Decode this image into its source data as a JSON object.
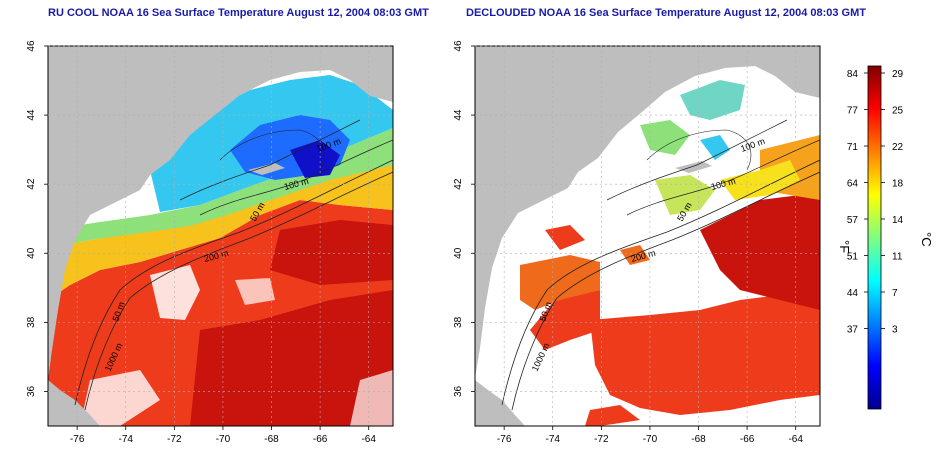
{
  "panels": [
    {
      "title": "RU COOL NOAA 16 Sea Surface Temperature August 12, 2004 08:03 GMT",
      "contour_labels": [
        "100 m",
        "100 m",
        "50 m",
        "200 m",
        "50 m",
        "1000 m"
      ]
    },
    {
      "title": "DECLOUDED NOAA 16 Sea Surface Temperature August 12, 2004 08:03 GMT",
      "contour_labels": [
        "100 m",
        "100 m",
        "50 m",
        "200 m",
        "50 m",
        "1000 m"
      ]
    }
  ],
  "axes": {
    "x_ticks": [
      "-76",
      "-74",
      "-72",
      "-70",
      "-68",
      "-66",
      "-64"
    ],
    "y_ticks": [
      "36",
      "38",
      "40",
      "42",
      "44",
      "46"
    ],
    "x_range": [
      -77.2,
      -63.0
    ],
    "y_range": [
      35.0,
      46.0
    ],
    "grid": "dotted"
  },
  "colorbar": {
    "unit_f": "°F",
    "unit_c": "°C",
    "f_ticks": [
      "84",
      "77",
      "71",
      "64",
      "57",
      "51",
      "44",
      "37"
    ],
    "c_ticks": [
      "29",
      "25",
      "22",
      "18",
      "14",
      "11",
      "7",
      "3"
    ],
    "colors": [
      "#00008f",
      "#0000ff",
      "#0080ff",
      "#00ffff",
      "#80ff80",
      "#ffff00",
      "#ff8000",
      "#ff0000",
      "#800000"
    ]
  },
  "colors": {
    "land": "#bebebe",
    "title": "#1a1aa6",
    "cold": "#1e6cff",
    "cool": "#34c8f0",
    "mild": "#8ee07a",
    "warm": "#f7c21c",
    "hot": "#ee3b1c",
    "hotter": "#c8140c"
  }
}
